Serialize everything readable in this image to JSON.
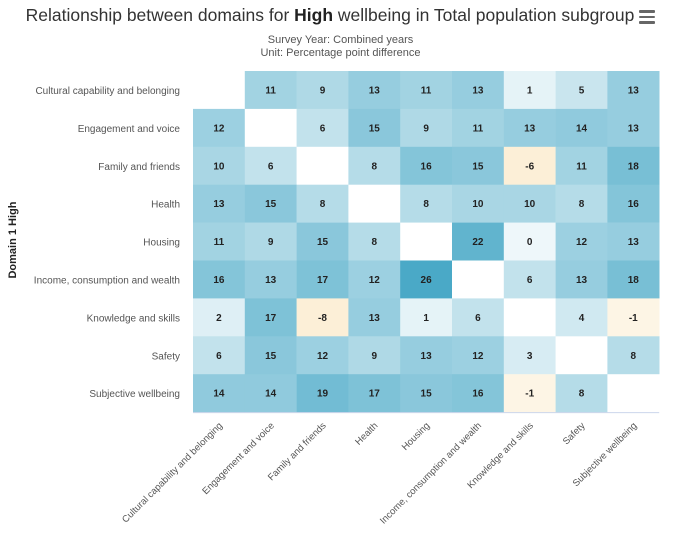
{
  "title": {
    "prefix": "Relationship between domains for ",
    "bold": "High",
    "suffix": " wellbeing in Total population subgroup"
  },
  "subtitle": {
    "line1": "Survey Year: Combined years",
    "line2": "Unit: Percentage point difference"
  },
  "menu_icon": "hamburger-menu-icon",
  "colors": {
    "positive_max": "#4aa9c7",
    "negative": "#fcefd7",
    "zero": "#ffffff",
    "label_text": "#222222"
  },
  "chart_data": {
    "type": "heatmap",
    "title": "Relationship between domains for High wellbeing in Total population subgroup",
    "ylabel": "Domain 1 High",
    "xlabel": "",
    "categories": [
      "Cultural capability and belonging",
      "Engagement and voice",
      "Family and friends",
      "Health",
      "Housing",
      "Income, consumption and wealth",
      "Knowledge and skills",
      "Safety",
      "Subjective wellbeing"
    ],
    "values": [
      [
        null,
        11,
        9,
        13,
        11,
        13,
        1,
        5,
        13
      ],
      [
        12,
        null,
        6,
        15,
        9,
        11,
        13,
        14,
        13
      ],
      [
        10,
        6,
        null,
        8,
        16,
        15,
        -6,
        11,
        18
      ],
      [
        13,
        15,
        8,
        null,
        8,
        10,
        10,
        8,
        16
      ],
      [
        11,
        9,
        15,
        8,
        null,
        22,
        0,
        12,
        13
      ],
      [
        16,
        13,
        17,
        12,
        26,
        null,
        6,
        13,
        18
      ],
      [
        2,
        17,
        -8,
        13,
        1,
        6,
        null,
        4,
        -1
      ],
      [
        6,
        15,
        12,
        9,
        13,
        12,
        3,
        null,
        8
      ],
      [
        14,
        14,
        19,
        17,
        15,
        16,
        -1,
        8,
        null
      ]
    ]
  }
}
